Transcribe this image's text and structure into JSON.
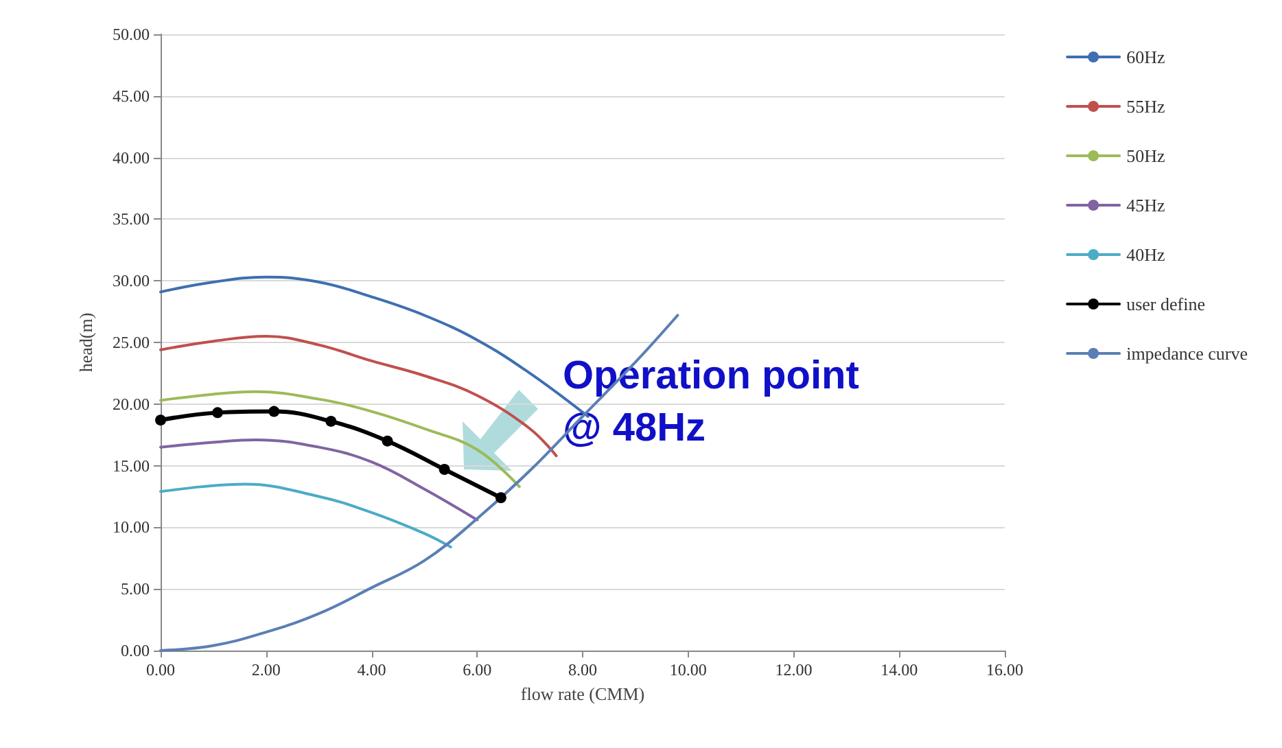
{
  "chart_data": {
    "type": "line",
    "xlabel": "flow rate (CMM)",
    "ylabel": "head(m)",
    "xlim": [
      0,
      16
    ],
    "xticks": [
      {
        "value": 0,
        "label": "0.00"
      },
      {
        "value": 2,
        "label": "2.00"
      },
      {
        "value": 4,
        "label": "4.00"
      },
      {
        "value": 6,
        "label": "6.00"
      },
      {
        "value": 8,
        "label": "8.00"
      },
      {
        "value": 10,
        "label": "10.00"
      },
      {
        "value": 12,
        "label": "12.00"
      },
      {
        "value": 14,
        "label": "14.00"
      },
      {
        "value": 16,
        "label": "16.00"
      }
    ],
    "ylim": [
      0,
      50
    ],
    "yticks": [
      {
        "value": 0,
        "label": "0.00"
      },
      {
        "value": 5,
        "label": "5.00"
      },
      {
        "value": 10,
        "label": "10.00"
      },
      {
        "value": 15,
        "label": "15.00"
      },
      {
        "value": 20,
        "label": "20.00"
      },
      {
        "value": 25,
        "label": "25.00"
      },
      {
        "value": 30,
        "label": "30.00"
      },
      {
        "value": 35,
        "label": "35.00"
      },
      {
        "value": 40,
        "label": "40.00"
      },
      {
        "value": 45,
        "label": "45.00"
      },
      {
        "value": 50,
        "label": "50.00"
      }
    ],
    "grid": "y",
    "legend": "right",
    "marker": "none",
    "series": [
      {
        "name": "60Hz",
        "color": "#3f6fb0",
        "x": [
          0,
          1,
          2,
          3,
          4,
          5,
          6,
          7,
          8.1
        ],
        "values": [
          29.1,
          29.9,
          30.3,
          29.9,
          28.7,
          27.2,
          25.2,
          22.5,
          19.0
        ]
      },
      {
        "name": "55Hz",
        "color": "#c0504d",
        "x": [
          0,
          1,
          2,
          3,
          4,
          5,
          6,
          7,
          7.5
        ],
        "values": [
          24.4,
          25.1,
          25.5,
          24.8,
          23.5,
          22.3,
          20.7,
          18.0,
          15.8
        ]
      },
      {
        "name": "50Hz",
        "color": "#9bbb59",
        "x": [
          0,
          1,
          1.8,
          3,
          4,
          5,
          6,
          6.8
        ],
        "values": [
          20.3,
          20.8,
          21.0,
          20.4,
          19.4,
          18.0,
          16.3,
          13.3
        ]
      },
      {
        "name": "45Hz",
        "color": "#8064a2",
        "x": [
          0,
          1,
          1.8,
          3,
          4,
          5,
          6
        ],
        "values": [
          16.5,
          16.9,
          17.1,
          16.5,
          15.3,
          13.1,
          10.6
        ]
      },
      {
        "name": "40Hz",
        "color": "#4bacc6",
        "x": [
          0,
          0.8,
          1.6,
          3,
          4,
          5,
          5.5
        ],
        "values": [
          12.9,
          13.3,
          13.5,
          12.5,
          11.2,
          9.5,
          8.4
        ]
      },
      {
        "name": "user define",
        "color": "#000000",
        "marker": "circle",
        "x": [
          0,
          1.08,
          2.15,
          3.23,
          4.3,
          5.38,
          6.45
        ],
        "values": [
          18.7,
          19.3,
          19.4,
          18.6,
          17.0,
          14.7,
          12.4
        ]
      },
      {
        "name": "impedance curve",
        "color": "#5b7fb5",
        "x": [
          0,
          1,
          2,
          3,
          4,
          5,
          6,
          7,
          8,
          9,
          9.8
        ],
        "values": [
          0,
          0.4,
          1.5,
          3.0,
          5.1,
          7.3,
          10.7,
          14.6,
          19.0,
          23.4,
          27.2
        ]
      }
    ],
    "annotations": [
      "Operation point\n@ 48Hz"
    ]
  }
}
